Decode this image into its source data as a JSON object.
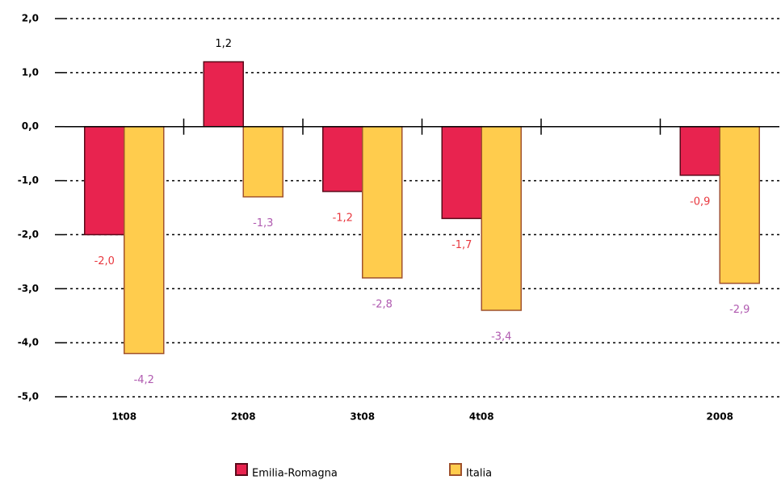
{
  "chart_data": {
    "type": "bar",
    "categories": [
      "1t08",
      "2t08",
      "3t08",
      "4t08",
      null,
      "2008"
    ],
    "series": [
      {
        "name": "Emilia-Romagna",
        "color": "#e8234f",
        "edge": "#5a0a1a",
        "label_color": "#e8383f",
        "values": [
          -2.0,
          1.2,
          -1.2,
          -1.7,
          null,
          -0.9
        ],
        "value_labels": [
          "-2,0",
          "1,2",
          "-1,2",
          "-1,7",
          null,
          "-0,9"
        ]
      },
      {
        "name": "Italia",
        "color": "#ffcc4d",
        "edge": "#a0522d",
        "label_color": "#b05ab0",
        "values": [
          -4.2,
          -1.3,
          -2.8,
          -3.4,
          null,
          -2.9
        ],
        "value_labels": [
          "-4,2",
          "-1,3",
          "-2,8",
          "-3,4",
          null,
          "-2,9"
        ]
      }
    ],
    "ylim": [
      -5,
      2
    ],
    "yticks": [
      {
        "value": -5,
        "label": "-5,0"
      },
      {
        "value": -4,
        "label": "-4,0"
      },
      {
        "value": -3,
        "label": "-3,0"
      },
      {
        "value": -2,
        "label": "-2,0"
      },
      {
        "value": -1,
        "label": "-1,0"
      },
      {
        "value": 0,
        "label": "0,0"
      },
      {
        "value": 1,
        "label": "1,0"
      },
      {
        "value": 2,
        "label": "2,0"
      }
    ],
    "grid": true,
    "legend": "bottom"
  }
}
